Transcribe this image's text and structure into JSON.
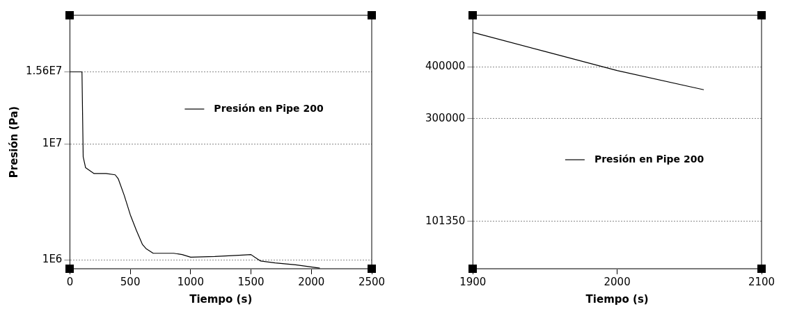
{
  "chart_data": [
    {
      "type": "line",
      "xlabel": "Tiempo (s)",
      "ylabel": "Presión (Pa)",
      "legend": "top right",
      "grid": "y",
      "marker": "none",
      "line_style": "solid",
      "xlim": [
        0,
        2500
      ],
      "xticks": [
        0,
        500,
        1000,
        1500,
        2000,
        2500
      ],
      "ylim": [
        300000,
        20000000
      ],
      "yticks": [
        {
          "value": 1000000,
          "label": "1E6"
        },
        {
          "value": 10000000,
          "label": "1E7"
        },
        {
          "value": 15600000,
          "label": "1.56E7"
        }
      ],
      "series": [
        {
          "name": "Presión en Pipe 200",
          "color": "#000000",
          "x": [
            0,
            100,
            110,
            130,
            200,
            300,
            375,
            400,
            450,
            500,
            550,
            600,
            630,
            690,
            750,
            860,
            930,
            1000,
            1200,
            1400,
            1500,
            1530,
            1580,
            1700,
            1870,
            2070
          ],
          "values": [
            15600000,
            15600000,
            9000000,
            8150000,
            7700000,
            7700000,
            7600000,
            7300000,
            6000000,
            4500000,
            3300000,
            2200000,
            1870000,
            1500000,
            1500000,
            1500000,
            1400000,
            1200000,
            1250000,
            1350000,
            1400000,
            1200000,
            900000,
            750000,
            600000,
            350000
          ]
        }
      ]
    },
    {
      "type": "line",
      "xlabel": "Tiempo (s)",
      "legend": "center",
      "grid": "y",
      "marker": "none",
      "line_style": "solid",
      "xlim": [
        1900,
        2100
      ],
      "xticks": [
        1900,
        2000,
        2100
      ],
      "ylim": [
        10000,
        500000
      ],
      "yticks": [
        101350,
        300000,
        400000
      ],
      "series": [
        {
          "name": "Presión en Pipe 200",
          "color": "#000000",
          "x": [
            1900,
            1950,
            2000,
            2060
          ],
          "values": [
            467000,
            430000,
            393000,
            356000
          ]
        }
      ]
    }
  ]
}
